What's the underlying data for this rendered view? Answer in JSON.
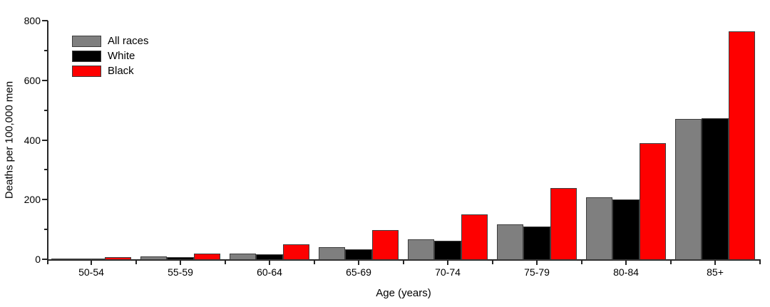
{
  "chart_data": {
    "type": "bar",
    "title": "",
    "xlabel": "Age (years)",
    "ylabel": "Deaths per 100,000 men",
    "categories": [
      "50-54",
      "55-59",
      "60-64",
      "65-69",
      "70-74",
      "75-79",
      "80-84",
      "85+"
    ],
    "series": [
      {
        "name": "All races",
        "color": "#7f7f7f",
        "values": [
          2,
          9,
          20,
          40,
          67,
          118,
          208,
          470
        ]
      },
      {
        "name": "White",
        "color": "#000000",
        "values": [
          2,
          7,
          16,
          34,
          61,
          111,
          201,
          474
        ]
      },
      {
        "name": "Black",
        "color": "#fe0000",
        "values": [
          8,
          20,
          50,
          98,
          151,
          240,
          390,
          765
        ]
      }
    ],
    "ylim": [
      0,
      800
    ],
    "y_major_ticks": [
      0,
      200,
      400,
      600,
      800
    ],
    "y_minor_ticks": [
      100,
      300,
      500,
      700
    ],
    "legend_position": "top-left-inside",
    "grid": false,
    "axis_color": "#262626",
    "bar_border_color": "#3d3d3d",
    "background": "#ffffff"
  }
}
